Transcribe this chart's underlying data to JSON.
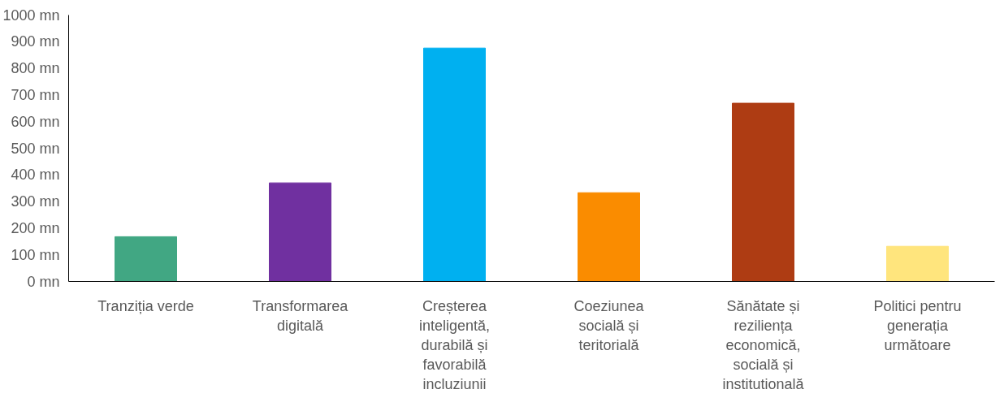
{
  "chart_data": {
    "type": "bar",
    "categories": [
      "Tranziția verde",
      "Transformarea digitală",
      "Creșterea inteligentă, durabilă și favorabilă incluziunii",
      "Coeziunea socială și teritorială",
      "Sănătate și reziliența economică, socială și institutională",
      "Politici pentru generația următoare"
    ],
    "values": [
      168,
      370,
      876,
      333,
      669,
      132
    ],
    "colors": [
      "#41a783",
      "#7030a0",
      "#00b0f0",
      "#fa8c00",
      "#ae3c13",
      "#ffe57d"
    ],
    "ylim": [
      0,
      1000
    ],
    "yticks": [
      {
        "value": 0,
        "label": "0 mn"
      },
      {
        "value": 100,
        "label": "100 mn"
      },
      {
        "value": 200,
        "label": "200 mn"
      },
      {
        "value": 300,
        "label": "300 mn"
      },
      {
        "value": 400,
        "label": "400 mn"
      },
      {
        "value": 500,
        "label": "500 mn"
      },
      {
        "value": 600,
        "label": "600 mn"
      },
      {
        "value": 700,
        "label": "700 mn"
      },
      {
        "value": 800,
        "label": "800 mn"
      },
      {
        "value": 900,
        "label": "900 mn"
      },
      {
        "value": 1000,
        "label": "1000 mn"
      }
    ],
    "grid": false
  }
}
